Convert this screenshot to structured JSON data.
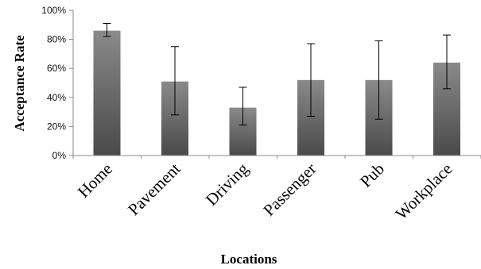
{
  "chart_data": {
    "type": "bar",
    "title": "",
    "xlabel": "Locations",
    "ylabel": "Acceptance Rate",
    "categories": [
      "Home",
      "Pavement",
      "Driving",
      "Passenger",
      "Pub",
      "Workplace"
    ],
    "values": [
      0.86,
      0.51,
      0.33,
      0.52,
      0.52,
      0.64
    ],
    "error_low": [
      0.82,
      0.28,
      0.21,
      0.27,
      0.25,
      0.46
    ],
    "error_high": [
      0.91,
      0.75,
      0.47,
      0.77,
      0.79,
      0.83
    ],
    "ylim": [
      0,
      1
    ],
    "yticks": [
      0,
      0.2,
      0.4,
      0.6,
      0.8,
      1.0
    ],
    "ytick_labels": [
      "0%",
      "20%",
      "40%",
      "60%",
      "80%",
      "100%"
    ],
    "grid": false,
    "legend": "none",
    "bar_color_top": "#8a8a8a",
    "bar_color_bottom": "#4a4a4a"
  }
}
